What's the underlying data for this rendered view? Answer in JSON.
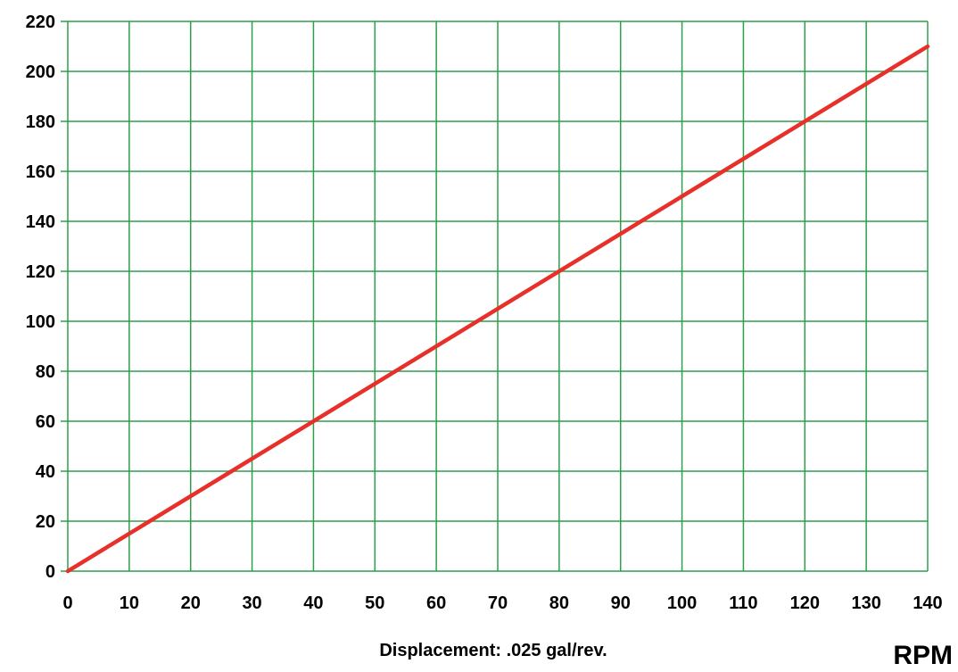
{
  "chart_data": {
    "type": "line",
    "title": "",
    "xlabel": "RPM",
    "ylabel": "",
    "subtitle": "Displacement: .025 gal/rev.",
    "xlim": [
      0,
      140
    ],
    "ylim": [
      0,
      220
    ],
    "x_ticks": [
      0,
      10,
      20,
      30,
      40,
      50,
      60,
      70,
      80,
      90,
      100,
      110,
      120,
      130,
      140
    ],
    "y_ticks": [
      0,
      20,
      40,
      60,
      80,
      100,
      120,
      140,
      160,
      180,
      200,
      220
    ],
    "grid": true,
    "legend": "none",
    "series": [
      {
        "x": [
          0,
          140
        ],
        "y": [
          0,
          210
        ],
        "color": "#e8302a"
      }
    ],
    "colors": {
      "grid": "#2e9e48",
      "line": "#e8302a",
      "text": "#000000"
    }
  }
}
